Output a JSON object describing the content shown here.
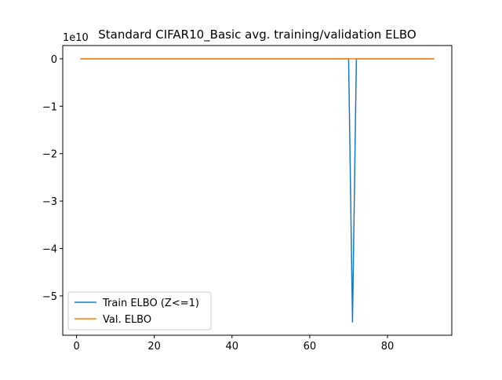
{
  "chart_data": {
    "type": "line",
    "title": "Standard CIFAR10_Basic avg. training/validation ELBO",
    "offset_text": "1e10",
    "xlim": [
      -3.55,
      96.55
    ],
    "ylim": [
      -5.83,
      0.28
    ],
    "y_units_scale": 10000000000.0,
    "x_ticks": [
      0,
      20,
      40,
      60,
      80
    ],
    "x_tick_labels": [
      "0",
      "20",
      "40",
      "60",
      "80"
    ],
    "y_ticks": [
      0,
      -1,
      -2,
      -3,
      -4,
      -5
    ],
    "y_tick_labels": [
      "0",
      "−1",
      "−2",
      "−3",
      "−4",
      "−5"
    ],
    "legend_position": "lower left",
    "series": [
      {
        "name": "Train ELBO (Z<=1)",
        "color": "#1f77b4",
        "x": [
          1,
          70,
          71,
          72,
          92
        ],
        "y": [
          0,
          0,
          -5.55,
          0,
          0
        ]
      },
      {
        "name": "Val. ELBO",
        "color": "#ff7f0e",
        "x": [
          1,
          92
        ],
        "y": [
          0,
          0
        ]
      }
    ]
  }
}
